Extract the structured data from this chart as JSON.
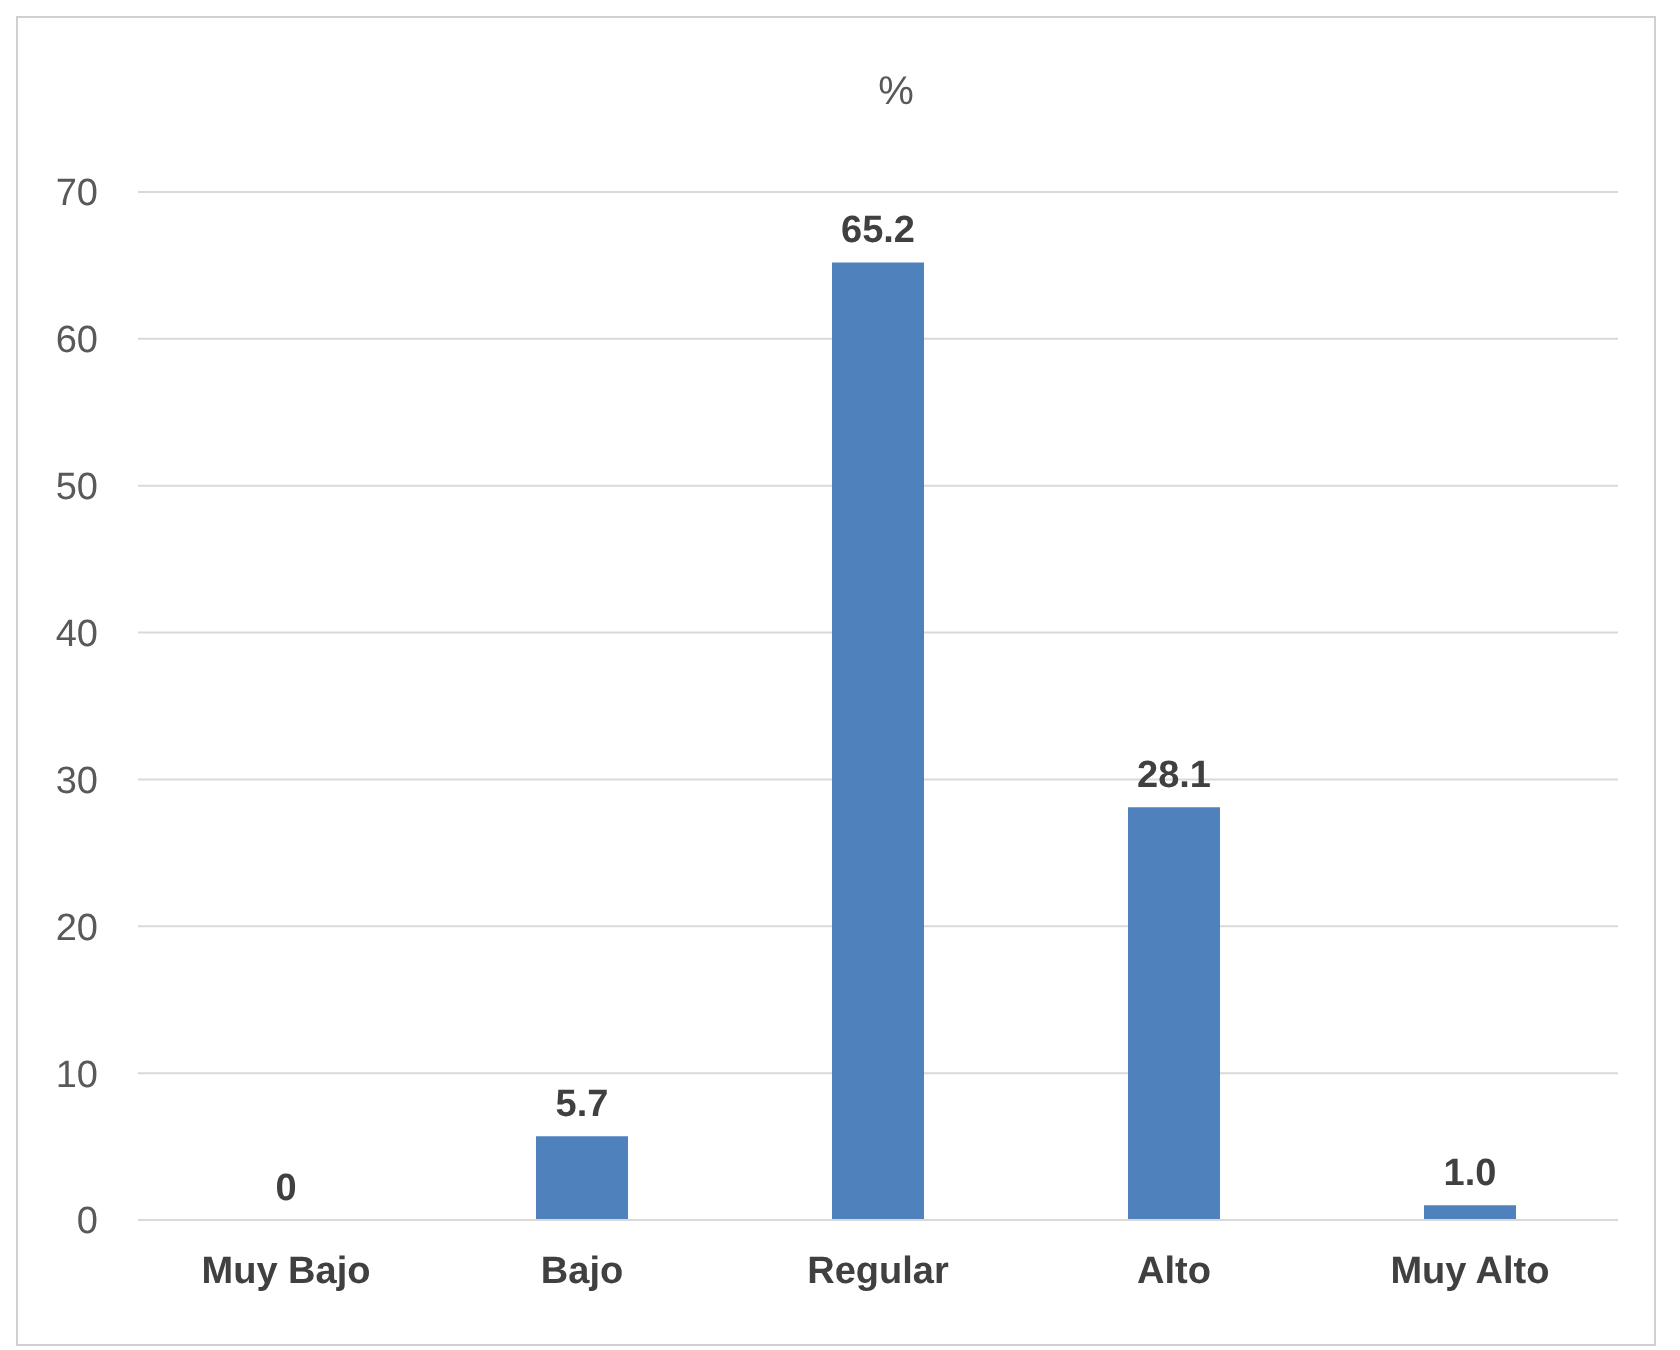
{
  "chart_data": {
    "type": "bar",
    "title": "%",
    "categories": [
      "Muy Bajo",
      "Bajo",
      "Regular",
      "Alto",
      "Muy Alto"
    ],
    "values": [
      0,
      5.7,
      65.2,
      28.1,
      1.0
    ],
    "value_labels": [
      "0",
      "5.7",
      "65.2",
      "28.1",
      "1.0"
    ],
    "color": "#4f81bd",
    "ylim": [
      0,
      70
    ],
    "yticks": [
      0,
      10,
      20,
      30,
      40,
      50,
      60,
      70
    ],
    "grid": "y"
  }
}
